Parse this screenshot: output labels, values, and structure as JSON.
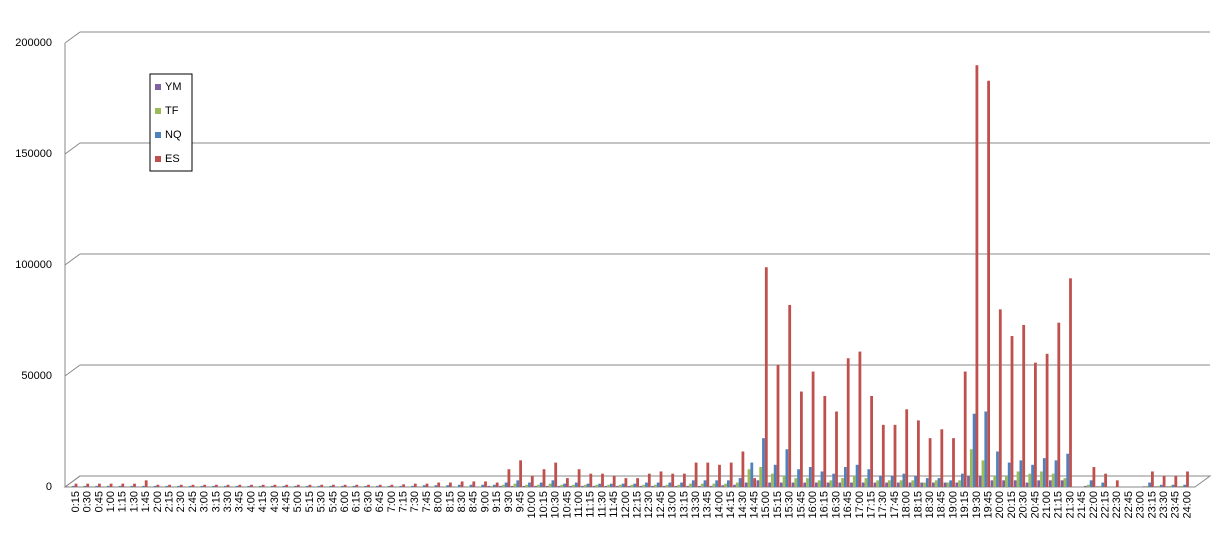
{
  "chart_data": {
    "type": "bar",
    "categories": [
      "0:15",
      "0:30",
      "0:45",
      "1:00",
      "1:15",
      "1:30",
      "1:45",
      "2:00",
      "2:15",
      "2:30",
      "2:45",
      "3:00",
      "3:15",
      "3:30",
      "3:45",
      "4:00",
      "4:15",
      "4:30",
      "4:45",
      "5:00",
      "5:15",
      "5:30",
      "5:45",
      "6:00",
      "6:15",
      "6:30",
      "6:45",
      "7:00",
      "7:15",
      "7:30",
      "7:45",
      "8:00",
      "8:15",
      "8:30",
      "8:45",
      "9:00",
      "9:15",
      "9:30",
      "9:45",
      "10:00",
      "10:15",
      "10:30",
      "10:45",
      "11:00",
      "11:15",
      "11:30",
      "11:45",
      "12:00",
      "12:15",
      "12:30",
      "12:45",
      "13:00",
      "13:15",
      "13:30",
      "13:45",
      "14:00",
      "14:15",
      "14:30",
      "14:45",
      "15:00",
      "15:15",
      "15:30",
      "15:45",
      "16:00",
      "16:15",
      "16:30",
      "16:45",
      "17:00",
      "17:15",
      "17:30",
      "17:45",
      "18:00",
      "18:15",
      "18:30",
      "18:45",
      "19:00",
      "19:15",
      "19:30",
      "19:45",
      "20:00",
      "20:15",
      "20:30",
      "20:45",
      "21:00",
      "21:15",
      "21:30",
      "21:45",
      "22:00",
      "22:15",
      "22:30",
      "22:45",
      "23:00",
      "23:15",
      "23:30",
      "23:45",
      "24:00"
    ],
    "series": [
      {
        "name": "YM",
        "color": "#7e62a1",
        "values": [
          200,
          200,
          200,
          200,
          200,
          200,
          200,
          200,
          200,
          200,
          200,
          200,
          200,
          200,
          200,
          200,
          200,
          200,
          200,
          200,
          200,
          200,
          200,
          200,
          200,
          200,
          200,
          200,
          200,
          200,
          200,
          200,
          200,
          200,
          200,
          200,
          500,
          500,
          500,
          500,
          500,
          500,
          500,
          500,
          500,
          500,
          500,
          500,
          500,
          500,
          500,
          500,
          500,
          500,
          500,
          500,
          800,
          1000,
          2000,
          3000,
          2000,
          2000,
          2000,
          2000,
          2000,
          2000,
          2000,
          2000,
          2000,
          2000,
          2000,
          2000,
          2000,
          2000,
          2000,
          2000,
          2000,
          5000,
          5000,
          3000,
          3000,
          3000,
          2000,
          3000,
          3000,
          3000,
          0,
          500,
          300,
          0,
          0,
          0,
          300,
          300,
          300,
          300
        ]
      },
      {
        "name": "TF",
        "color": "#9bbb59",
        "values": [
          300,
          300,
          300,
          300,
          300,
          300,
          300,
          300,
          300,
          300,
          300,
          300,
          300,
          300,
          300,
          300,
          300,
          300,
          300,
          300,
          300,
          300,
          300,
          300,
          300,
          300,
          300,
          300,
          300,
          300,
          300,
          300,
          300,
          300,
          300,
          300,
          500,
          1000,
          1500,
          1000,
          1000,
          1500,
          1000,
          1000,
          1000,
          1000,
          1000,
          1000,
          1000,
          1000,
          1000,
          1000,
          1000,
          1500,
          1500,
          1500,
          1500,
          2000,
          8000,
          9000,
          6000,
          5000,
          4000,
          4000,
          3000,
          3000,
          4000,
          5000,
          4000,
          3000,
          3000,
          3000,
          3000,
          2000,
          3000,
          2000,
          3000,
          17000,
          12000,
          5000,
          5000,
          7000,
          6000,
          7000,
          6000,
          4000,
          0,
          1000,
          500,
          0,
          0,
          0,
          500,
          500,
          500,
          500
        ]
      },
      {
        "name": "NQ",
        "color": "#4f81bd",
        "values": [
          500,
          500,
          500,
          500,
          500,
          500,
          500,
          500,
          500,
          500,
          500,
          500,
          500,
          500,
          500,
          500,
          500,
          500,
          500,
          500,
          500,
          500,
          500,
          500,
          500,
          500,
          500,
          500,
          500,
          500,
          800,
          800,
          800,
          1000,
          1000,
          1000,
          1000,
          2000,
          3000,
          2000,
          2000,
          3000,
          1500,
          2000,
          1500,
          1500,
          1500,
          1500,
          1500,
          2000,
          2000,
          2000,
          2000,
          3000,
          3000,
          3000,
          3000,
          4000,
          11000,
          22000,
          10000,
          17000,
          8000,
          9000,
          7000,
          6000,
          9000,
          10000,
          8000,
          5000,
          5000,
          6000,
          5000,
          4000,
          4000,
          3000,
          6000,
          33000,
          34000,
          16000,
          11000,
          12000,
          10000,
          13000,
          12000,
          15000,
          0,
          3000,
          2000,
          0,
          0,
          0,
          2000,
          1000,
          1000,
          1000
        ]
      },
      {
        "name": "ES",
        "color": "#c0504d",
        "values": [
          1500,
          1500,
          1500,
          1500,
          1500,
          1500,
          3000,
          1000,
          1000,
          1000,
          1000,
          1000,
          1000,
          1000,
          1000,
          1000,
          1000,
          1000,
          1000,
          1000,
          1000,
          1000,
          1000,
          1000,
          1000,
          1000,
          1000,
          1000,
          1200,
          1500,
          1500,
          2000,
          2000,
          2500,
          2500,
          2500,
          2000,
          8000,
          12000,
          5000,
          8000,
          11000,
          4000,
          8000,
          6000,
          6000,
          5000,
          4000,
          4000,
          6000,
          7000,
          6000,
          6000,
          11000,
          11000,
          10000,
          11000,
          16000,
          4000,
          99000,
          55000,
          82000,
          43000,
          52000,
          41000,
          34000,
          58000,
          61000,
          41000,
          28000,
          28000,
          35000,
          30000,
          22000,
          26000,
          22000,
          52000,
          190000,
          183000,
          80000,
          68000,
          73000,
          56000,
          60000,
          74000,
          94000,
          0,
          9000,
          6000,
          3000,
          0,
          0,
          7000,
          5000,
          5000,
          7000
        ]
      }
    ],
    "ylim": [
      0,
      200000
    ],
    "yticks": [
      0,
      50000,
      100000,
      150000,
      200000
    ],
    "grid": true,
    "legend": "upper-left"
  }
}
